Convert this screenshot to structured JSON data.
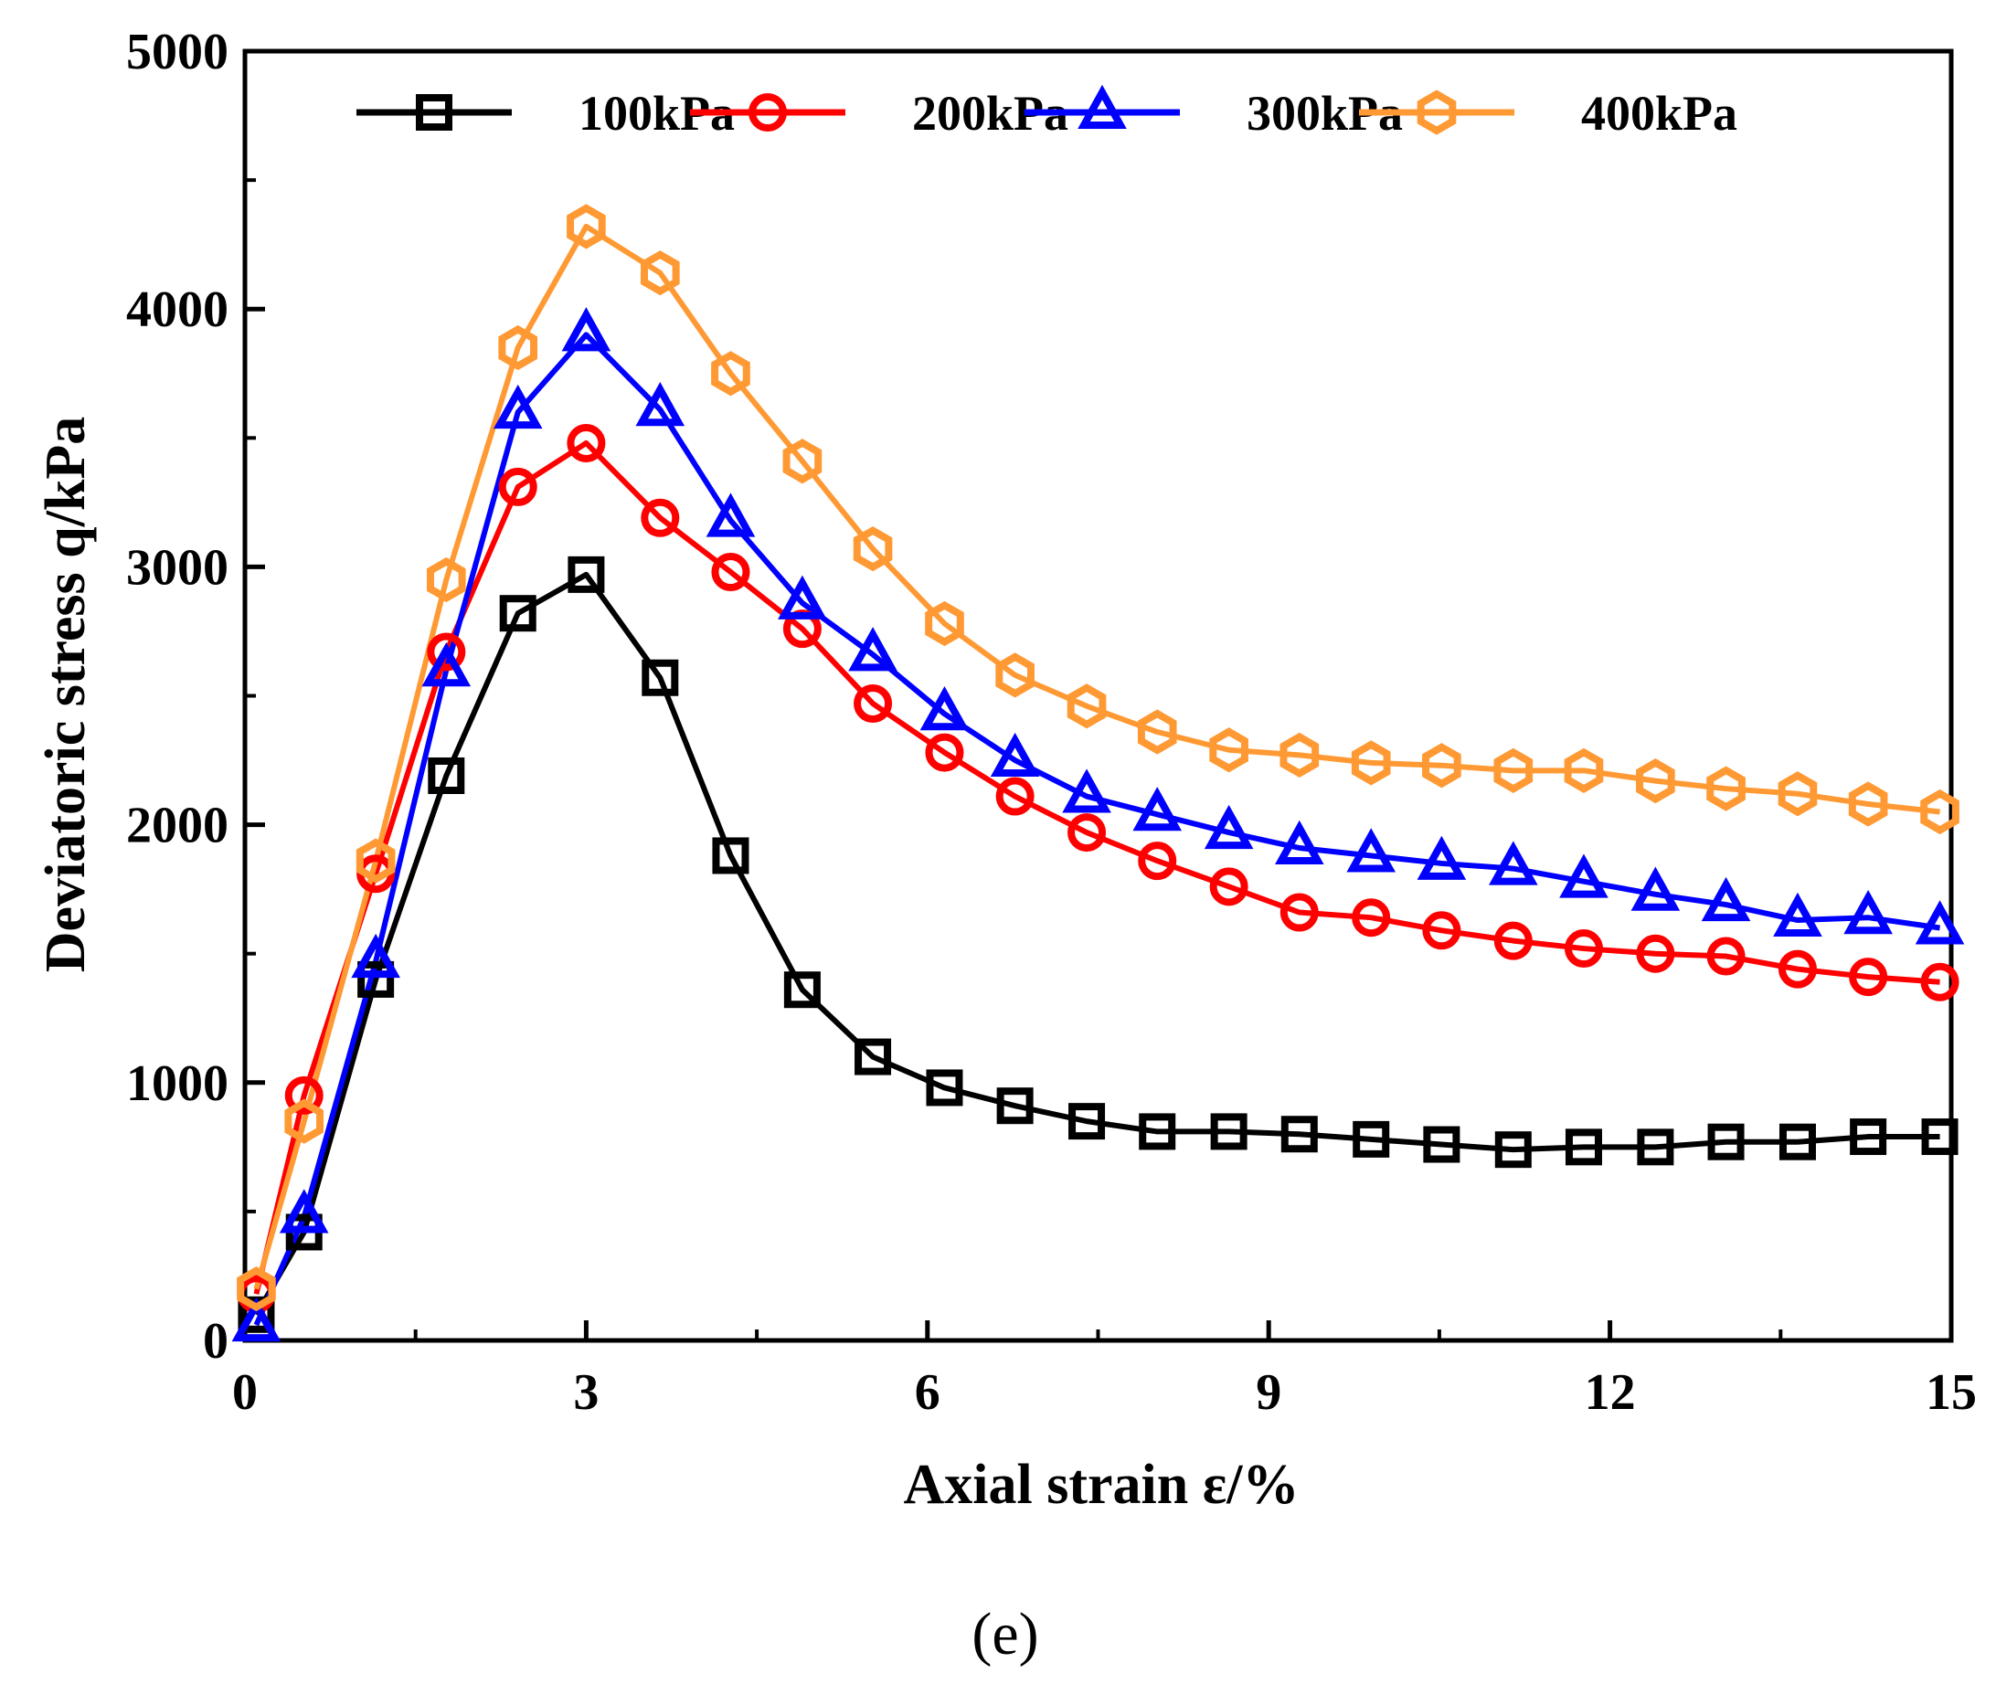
{
  "chart_data": {
    "type": "line",
    "title": "",
    "xlabel": "Axial strain ε/%",
    "ylabel": "Deviatoric stress q/kPa",
    "caption": "(e)",
    "xlim": [
      0,
      15
    ],
    "ylim": [
      0,
      5000
    ],
    "xticks": [
      0,
      3,
      6,
      9,
      12,
      15
    ],
    "xtick_labels": [
      "0",
      "3",
      "6",
      "9",
      "12",
      "15"
    ],
    "yticks": [
      0,
      1000,
      2000,
      3000,
      4000,
      5000
    ],
    "ytick_labels": [
      "0",
      "1000",
      "2000",
      "3000",
      "4000",
      "5000"
    ],
    "legend_position": "top",
    "x": [
      0.1,
      0.52,
      1.15,
      1.77,
      2.4,
      3.0,
      3.65,
      4.27,
      4.9,
      5.52,
      6.15,
      6.77,
      7.4,
      8.02,
      8.65,
      9.27,
      9.9,
      10.52,
      11.15,
      11.77,
      12.4,
      13.02,
      13.65,
      14.27,
      14.9
    ],
    "series": [
      {
        "name": "100kPa",
        "marker": "square",
        "color": "#000000",
        "values": [
          100,
          420,
          1400,
          2190,
          2820,
          2970,
          2570,
          1880,
          1360,
          1100,
          980,
          910,
          850,
          810,
          810,
          800,
          780,
          760,
          740,
          750,
          750,
          770,
          770,
          790,
          790
        ]
      },
      {
        "name": "200kPa",
        "marker": "circle",
        "color": "#ff0000",
        "values": [
          180,
          950,
          1810,
          2670,
          3310,
          3480,
          3190,
          2980,
          2760,
          2470,
          2280,
          2110,
          1970,
          1860,
          1760,
          1660,
          1640,
          1590,
          1550,
          1520,
          1500,
          1490,
          1440,
          1410,
          1390
        ]
      },
      {
        "name": "300kPa",
        "marker": "triangle",
        "color": "#0000ff",
        "values": [
          60,
          480,
          1470,
          2600,
          3600,
          3900,
          3610,
          3180,
          2860,
          2660,
          2430,
          2250,
          2110,
          2040,
          1970,
          1910,
          1880,
          1850,
          1830,
          1780,
          1730,
          1690,
          1630,
          1640,
          1600
        ]
      },
      {
        "name": "400kPa",
        "marker": "hexagon",
        "color": "#ff9933",
        "values": [
          200,
          850,
          1860,
          2950,
          3850,
          4320,
          4140,
          3750,
          3410,
          3070,
          2780,
          2580,
          2460,
          2360,
          2290,
          2270,
          2240,
          2230,
          2210,
          2210,
          2170,
          2140,
          2120,
          2080,
          2050
        ]
      }
    ]
  }
}
